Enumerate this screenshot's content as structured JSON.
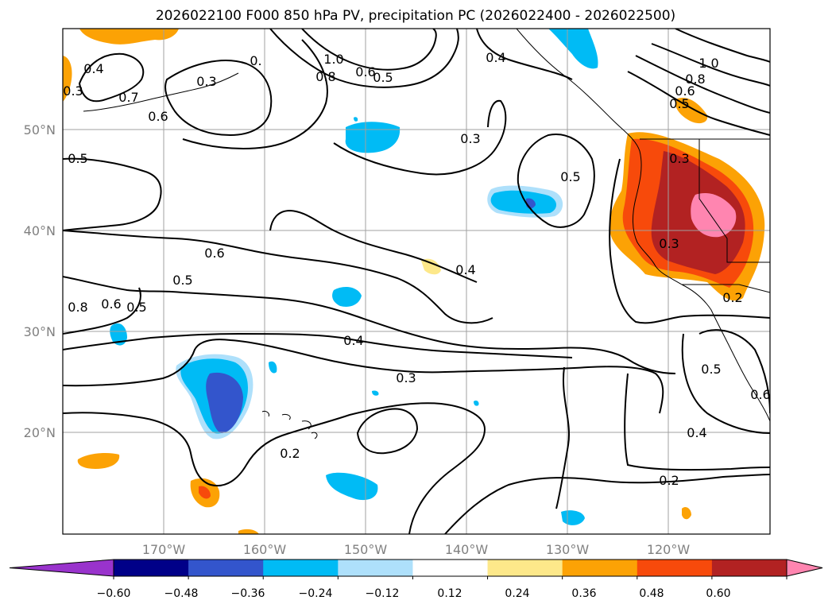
{
  "title": "2026022100 F000 850 hPa PV, precipitation PC (2026022400 - 2026022500)",
  "lat_labels": [
    "50°N",
    "40°N",
    "30°N",
    "20°N"
  ],
  "lon_labels": [
    "170°W",
    "160°W",
    "150°W",
    "140°W",
    "130°W",
    "120°W"
  ],
  "colorbar": {
    "tick_labels": [
      "−0.60",
      "−0.48",
      "−0.36",
      "−0.24",
      "−0.12",
      "0.12",
      "0.24",
      "0.36",
      "0.48",
      "0.60"
    ],
    "colors": [
      "#9933cc",
      "#000088",
      "#3355cc",
      "#00bbf5",
      "#aee0fb",
      "#ffffff",
      "#fde88a",
      "#fca205",
      "#f74a0b",
      "#b22222",
      "#ff85b0"
    ]
  },
  "contour_labels": [
    {
      "text": "0.4"
    },
    {
      "text": "0.3"
    },
    {
      "text": "0.7"
    },
    {
      "text": "0.6"
    },
    {
      "text": "0.3"
    },
    {
      "text": "0.5"
    },
    {
      "text": "0."
    },
    {
      "text": "1.0"
    },
    {
      "text": "0.8"
    },
    {
      "text": "0.6"
    },
    {
      "text": "0.5"
    },
    {
      "text": "0.4"
    },
    {
      "text": "0.3"
    },
    {
      "text": "0.5"
    },
    {
      "text": "1.0"
    },
    {
      "text": "0.8"
    },
    {
      "text": "0.6"
    },
    {
      "text": "0.5"
    },
    {
      "text": "0.3"
    },
    {
      "text": "0.6"
    },
    {
      "text": "0.5"
    },
    {
      "text": "0.4"
    },
    {
      "text": "0.3"
    },
    {
      "text": "0.4"
    },
    {
      "text": "0.3"
    },
    {
      "text": "0.2"
    },
    {
      "text": "0.2"
    },
    {
      "text": "0.5"
    },
    {
      "text": "0.6"
    },
    {
      "text": "0.4"
    },
    {
      "text": "0.2"
    },
    {
      "text": "0.8"
    },
    {
      "text": "0.6"
    },
    {
      "text": "0.5"
    }
  ]
}
